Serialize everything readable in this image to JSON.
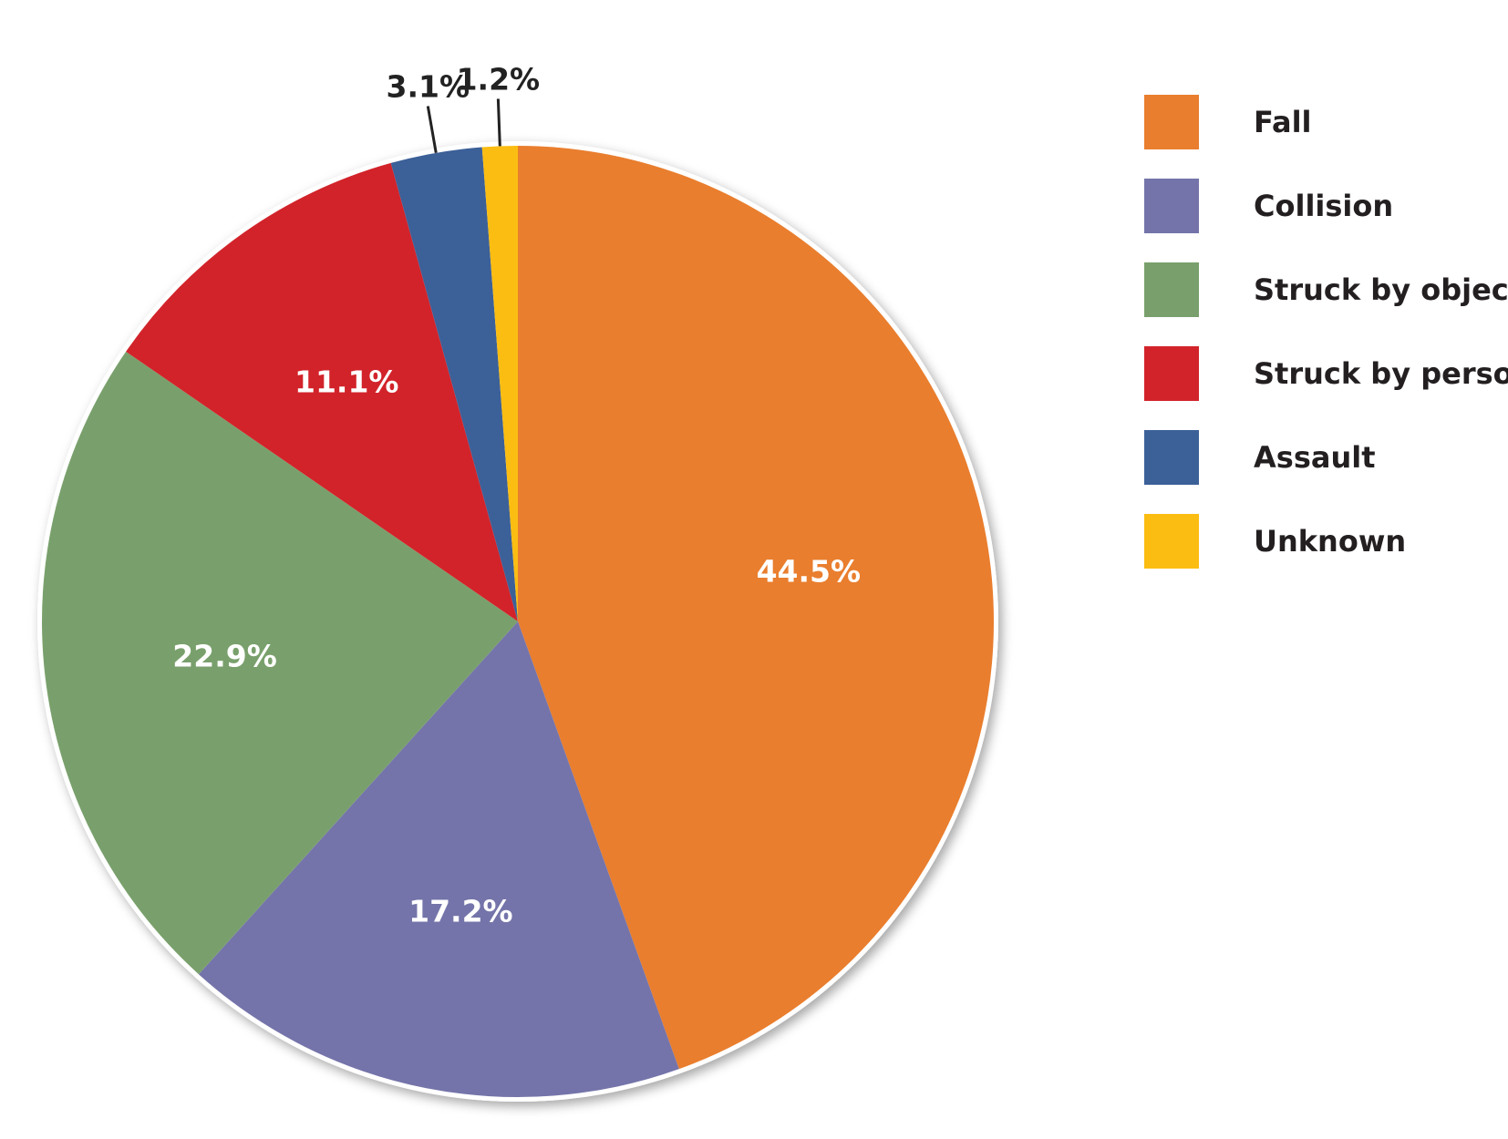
{
  "chart_data": {
    "type": "pie",
    "slices": [
      {
        "label": "Fall",
        "value": 44.5,
        "display": "44.5%",
        "color": "#e97e2e"
      },
      {
        "label": "Collision",
        "value": 17.2,
        "display": "17.2%",
        "color": "#7474aa"
      },
      {
        "label": "Struck by object",
        "value": 22.9,
        "display": "22.9%",
        "color": "#79a06c"
      },
      {
        "label": "Struck by person",
        "value": 11.1,
        "display": "11.1%",
        "color": "#d2232a"
      },
      {
        "label": "Assault",
        "value": 3.1,
        "display": "3.1%",
        "color": "#3c6098"
      },
      {
        "label": "Unknown",
        "value": 1.2,
        "display": "1.2%",
        "color": "#fbbd12"
      }
    ],
    "legend_placement": "right",
    "start": "top, clockwise"
  }
}
